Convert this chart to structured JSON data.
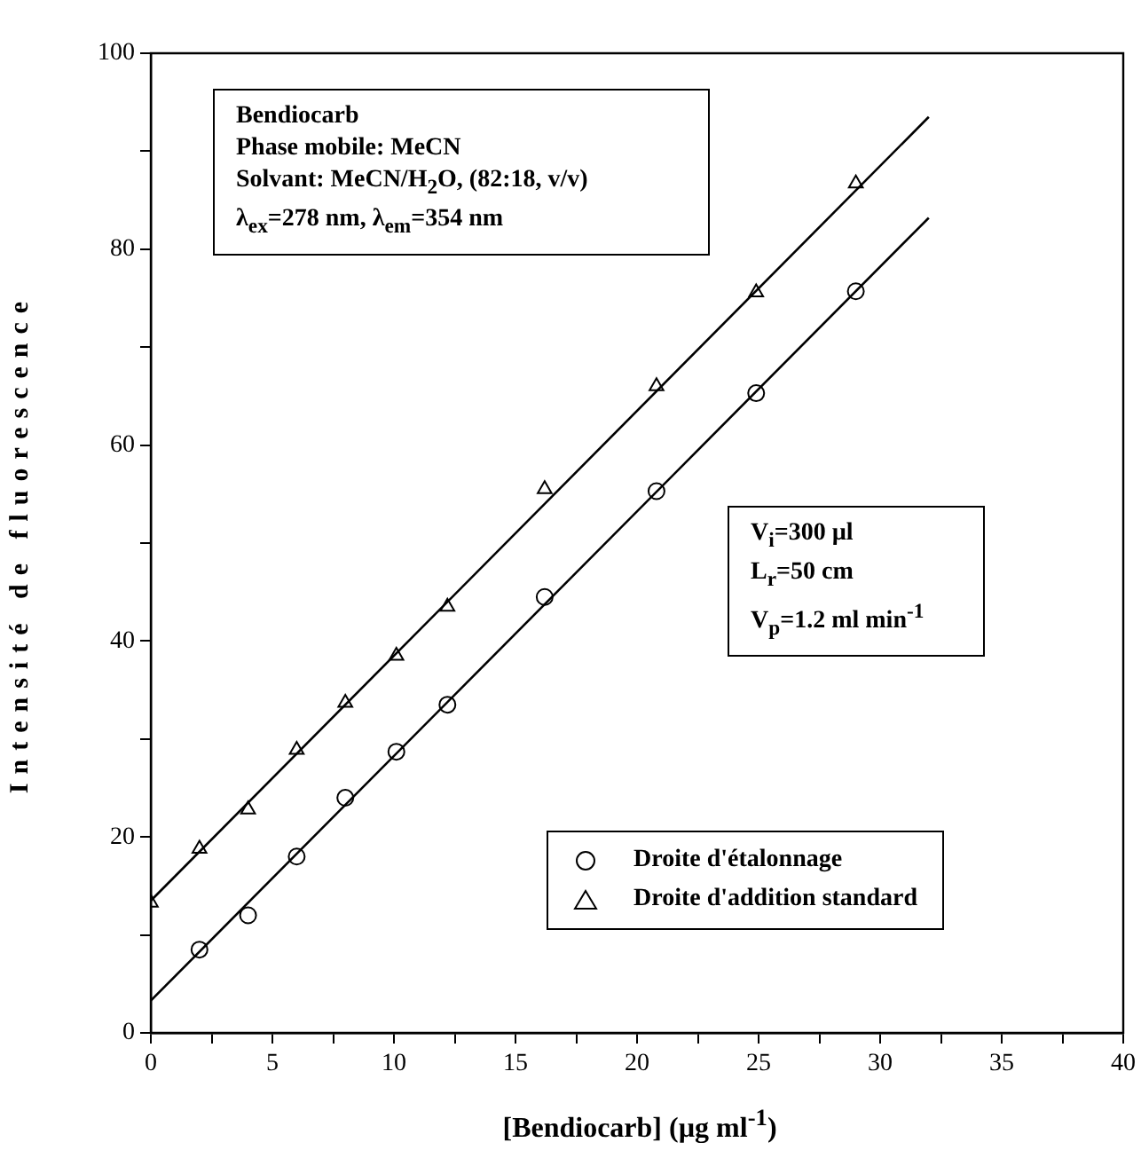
{
  "chart_data": {
    "type": "scatter",
    "xlabel": "[Bendiocarb]  (µg ml$^{-1}$)",
    "ylabel": "Intensité de fluorescence",
    "xlim": [
      0,
      40
    ],
    "xticks": [
      0,
      {
        "value": 2.5,
        "label": null
      },
      5,
      {
        "value": 7.5,
        "label": null
      },
      10,
      {
        "value": 12.5,
        "label": null
      },
      15,
      {
        "value": 17.5,
        "label": null
      },
      20,
      {
        "value": 22.5,
        "label": null
      },
      25,
      {
        "value": 27.5,
        "label": null
      },
      30,
      {
        "value": 32.5,
        "label": null
      },
      35,
      {
        "value": 37.5,
        "label": null
      },
      40
    ],
    "ylim": [
      0,
      100
    ],
    "yticks": [
      0,
      {
        "value": 10,
        "label": null
      },
      20,
      {
        "value": 30,
        "label": null
      },
      40,
      {
        "value": 50,
        "label": null
      },
      60,
      {
        "value": 70,
        "label": null
      },
      80,
      {
        "value": 90,
        "label": null
      },
      100
    ],
    "grid": false,
    "legend": "bottom",
    "series": [
      {
        "name": "Droite d'étalonnage",
        "color": "#000000",
        "marker": "circle",
        "x": [
          2,
          4,
          6,
          8,
          10.1,
          12.2,
          16.2,
          20.8,
          24.9,
          29
        ],
        "values": [
          8.5,
          12,
          18,
          24,
          28.7,
          33.5,
          44.5,
          55.3,
          65.3,
          75.7
        ]
      },
      {
        "name": "Droite d'addition standard",
        "color": "#000000",
        "marker": "triangle",
        "x": [
          0,
          2,
          4,
          6,
          8,
          10.1,
          12.2,
          16.2,
          20.8,
          24.9,
          29
        ],
        "values": [
          13.3,
          18.8,
          22.8,
          28.9,
          33.7,
          38.5,
          43.5,
          55.5,
          66,
          75.6,
          86.7
        ]
      },
      {
        "type": "line",
        "color": "#000000",
        "marker": "none",
        "line_style": "solid",
        "x": [
          0,
          32
        ],
        "values": [
          3.3,
          83.2
        ]
      },
      {
        "type": "line",
        "color": "#000000",
        "marker": "none",
        "line_style": "solid",
        "x": [
          0,
          32
        ],
        "values": [
          13.5,
          93.5
        ]
      }
    ],
    "annotations": [
      "Bendiocarb\nPhase mobile: MeCN\nSolvant: MeCN/H$_{2}$O, (82:18, v/v)\nλ$_{ex}$=278 nm, λ$_{em}$=354 nm",
      "V$_{i}$=300 µl\nL$_{r}$=50 cm\nV$_{p}$=1.2  ml min$^{-1}$"
    ]
  }
}
